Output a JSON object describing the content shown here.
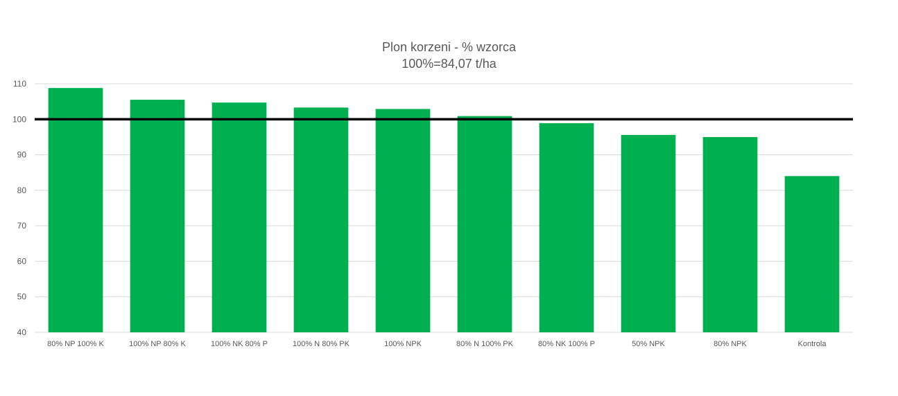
{
  "chart_data": {
    "type": "bar",
    "title": "Plon korzeni - % wzorca",
    "subtitle": "100%=84,07 t/ha",
    "xlabel": "",
    "ylabel": "",
    "categories": [
      "80% NP 100% K",
      "100% NP 80% K",
      "100% NK 80% P",
      "100% N 80% PK",
      "100% NPK",
      "80% N 100% PK",
      "80% NK 100% P",
      "50% NPK",
      "80% NPK",
      "Kontrola"
    ],
    "values": [
      108.8,
      105.5,
      104.7,
      103.3,
      102.9,
      100.9,
      98.9,
      95.6,
      95.0,
      84.0
    ],
    "ylim": [
      40,
      110
    ],
    "yticks": [
      40,
      50,
      60,
      70,
      80,
      90,
      100,
      110
    ],
    "reference_line": 100,
    "grid": true,
    "legend": "none",
    "colors": {
      "bar": "#00b050",
      "reference": "#000000",
      "grid": "#d9d9d9",
      "text": "#595959"
    }
  }
}
